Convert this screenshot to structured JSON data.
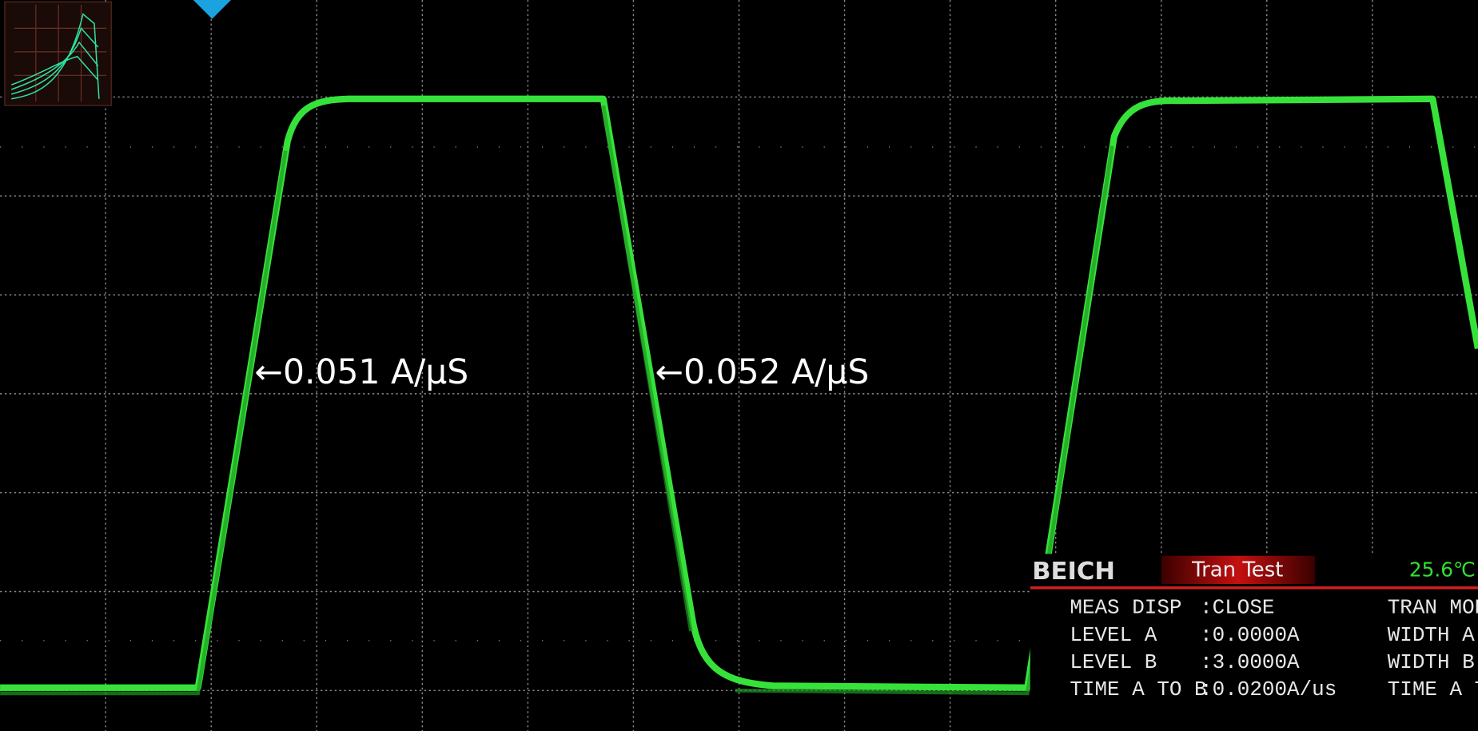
{
  "annotations": [
    "←0.051 A/μS",
    "←0.052 A/μS"
  ],
  "panel": {
    "brand": "BEICH",
    "mode": "Tran Test",
    "temperature": "25.6℃",
    "rows": [
      [
        "MEAS DISP",
        ":CLOSE",
        "TRAN MOD"
      ],
      [
        "LEVEL A",
        ":0.0000A",
        "WIDTH A"
      ],
      [
        "LEVEL B",
        ":3.0000A",
        "WIDTH B"
      ],
      [
        "TIME A TO B",
        ":0.0200A/us",
        "TIME A T"
      ]
    ]
  }
}
